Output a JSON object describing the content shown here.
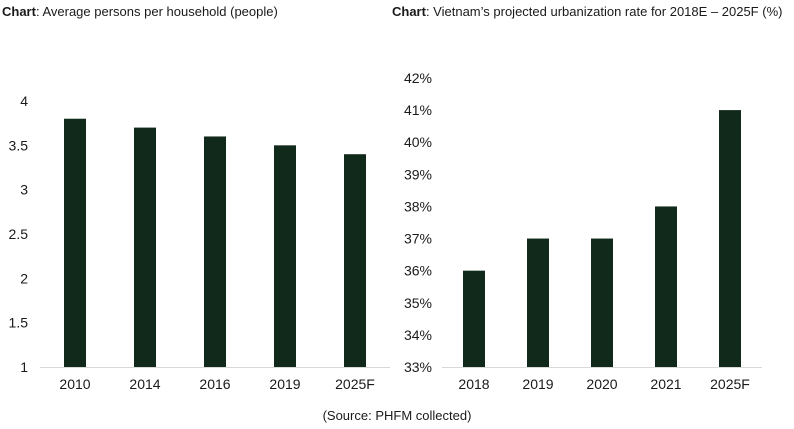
{
  "chart_data": [
    {
      "type": "bar",
      "title_prefix": "Chart",
      "title": ": Average persons per household (people)",
      "categories": [
        "2010",
        "2014",
        "2016",
        "2019",
        "2025F"
      ],
      "values": [
        3.8,
        3.7,
        3.6,
        3.5,
        3.4
      ],
      "yticks": [
        "1",
        "1.5",
        "2",
        "2.5",
        "3",
        "3.5",
        "4"
      ],
      "ylim": [
        1,
        4
      ],
      "grid": false,
      "bar_color": "#10291a"
    },
    {
      "type": "bar",
      "title_prefix": "Chart",
      "title": ": Vietnam’s projected urbanization rate for 2018E – 2025F (%)",
      "categories": [
        "2018",
        "2019",
        "2020",
        "2021",
        "2025F"
      ],
      "values": [
        36,
        37,
        37,
        38,
        41
      ],
      "yticks": [
        "33%",
        "34%",
        "35%",
        "36%",
        "37%",
        "38%",
        "39%",
        "40%",
        "41%",
        "42%"
      ],
      "ylim": [
        33,
        42
      ],
      "grid": false,
      "bar_color": "#10291a"
    }
  ],
  "source": "(Source: PHFM collected)"
}
